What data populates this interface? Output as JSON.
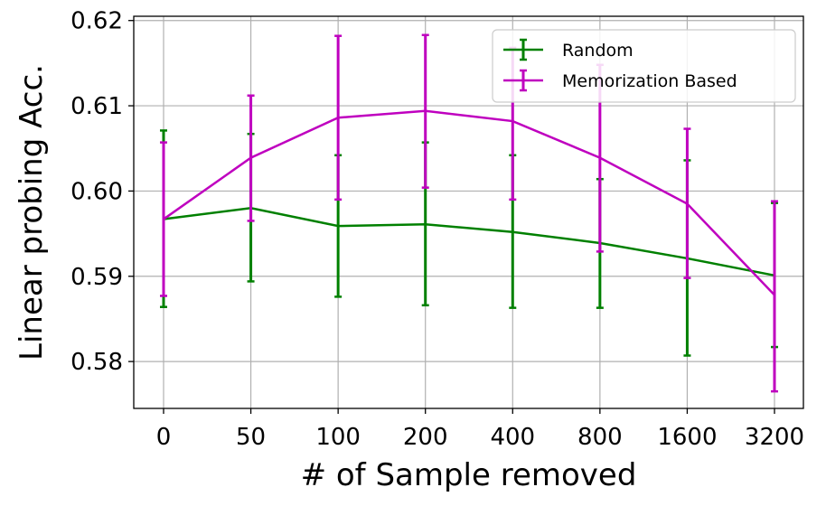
{
  "chart_data": {
    "type": "line",
    "title": "",
    "xlabel": "# of Sample removed",
    "ylabel": "Linear probing Acc.",
    "categories": [
      "0",
      "50",
      "100",
      "200",
      "400",
      "800",
      "1600",
      "3200"
    ],
    "ylim": [
      0.5745,
      0.6205
    ],
    "yticks": [
      0.58,
      0.59,
      0.6,
      0.61,
      0.62
    ],
    "ytick_labels": [
      "0.58",
      "0.59",
      "0.60",
      "0.61",
      "0.62"
    ],
    "grid": true,
    "legend_position": "top-right",
    "series": [
      {
        "name": "Random",
        "color": "#008000",
        "values": [
          0.5967,
          0.598,
          0.5959,
          0.5961,
          0.5952,
          0.5939,
          0.5921,
          0.5901
        ],
        "err_low": [
          0.5864,
          0.5894,
          0.5876,
          0.5866,
          0.5863,
          0.5863,
          0.5807,
          0.5817
        ],
        "err_high": [
          0.6071,
          0.6067,
          0.6042,
          0.6057,
          0.6042,
          0.6014,
          0.6036,
          0.5986
        ]
      },
      {
        "name": "Memorization Based",
        "color": "#bf00bf",
        "values": [
          0.5967,
          0.6039,
          0.6086,
          0.6094,
          0.6082,
          0.6039,
          0.5985,
          0.5878
        ],
        "err_low": [
          0.5877,
          0.5965,
          0.599,
          0.6004,
          0.599,
          0.5929,
          0.5898,
          0.5765
        ],
        "err_high": [
          0.6057,
          0.6112,
          0.6182,
          0.6183,
          0.6168,
          0.6148,
          0.6073,
          0.5988
        ]
      }
    ]
  }
}
